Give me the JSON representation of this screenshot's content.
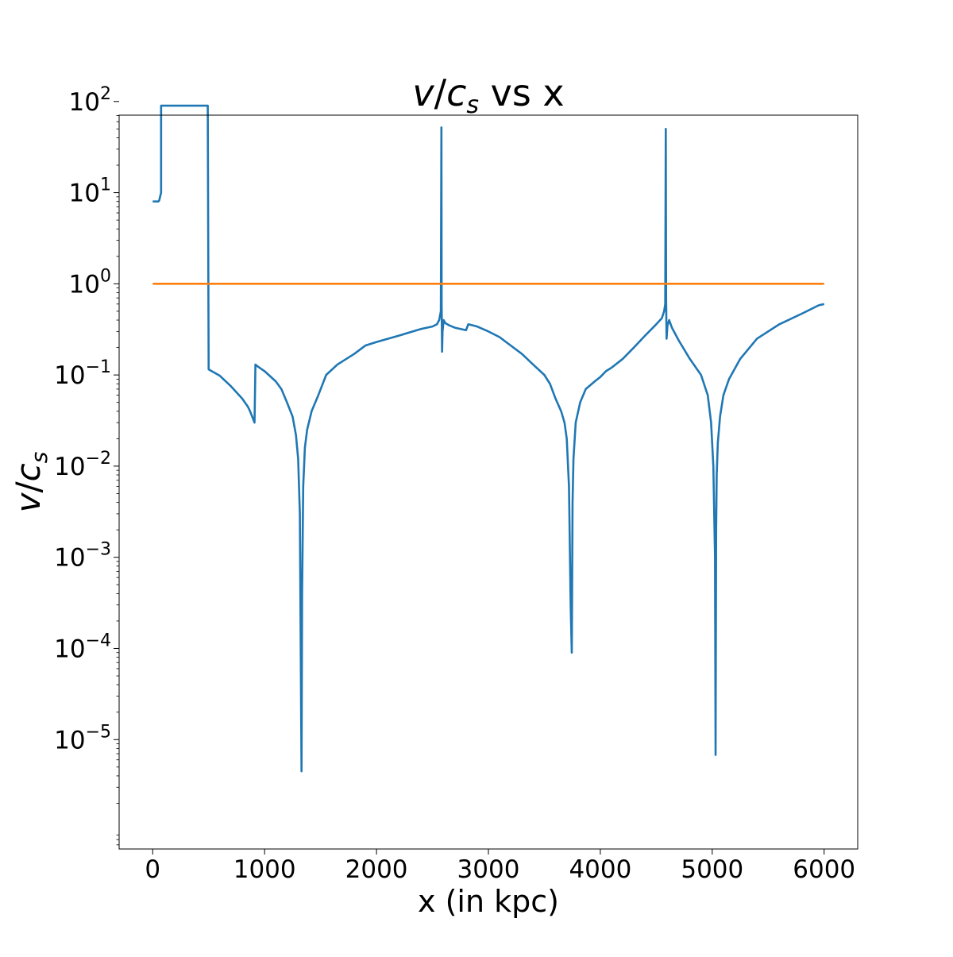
{
  "chart_data": {
    "type": "line",
    "title_parts": {
      "var_v": "v",
      "slash": "/",
      "var_c": "c",
      "sub_s": "s",
      "rest": " vs x"
    },
    "xlabel": "x (in kpc)",
    "ylabel_parts": {
      "var_v": "v",
      "slash": "/",
      "var_c": "c",
      "sub_s": "s"
    },
    "xlim": [
      -300,
      6300
    ],
    "ylim_log10": [
      -6.2,
      1.85
    ],
    "y_scale": "log",
    "grid": false,
    "x_ticks": [
      {
        "value": 0,
        "label": "0"
      },
      {
        "value": 1000,
        "label": "1000"
      },
      {
        "value": 2000,
        "label": "2000"
      },
      {
        "value": 3000,
        "label": "3000"
      },
      {
        "value": 4000,
        "label": "4000"
      },
      {
        "value": 5000,
        "label": "5000"
      },
      {
        "value": 6000,
        "label": "6000"
      }
    ],
    "y_ticks": [
      {
        "exp": 2,
        "base": "10",
        "power": "2"
      },
      {
        "exp": 1,
        "base": "10",
        "power": "1"
      },
      {
        "exp": 0,
        "base": "10",
        "power": "0"
      },
      {
        "exp": -1,
        "base": "10",
        "power": "−1"
      },
      {
        "exp": -2,
        "base": "10",
        "power": "−2"
      },
      {
        "exp": -3,
        "base": "10",
        "power": "−3"
      },
      {
        "exp": -4,
        "base": "10",
        "power": "−4"
      },
      {
        "exp": -5,
        "base": "10",
        "power": "−5"
      }
    ],
    "series": [
      {
        "color": "#1f77b4",
        "x": [
          0,
          50,
          58,
          75,
          75,
          490,
          492,
          500,
          600,
          700,
          800,
          850,
          870,
          910,
          918,
          935,
          1000,
          1100,
          1150,
          1200,
          1250,
          1280,
          1300,
          1315,
          1330,
          1335,
          1345,
          1360,
          1380,
          1420,
          1480,
          1550,
          1650,
          1800,
          1900,
          2000,
          2200,
          2400,
          2500,
          2540,
          2560,
          2575,
          2580,
          2582,
          2586,
          2590,
          2600,
          2615,
          2650,
          2700,
          2800,
          2820,
          2900,
          3000,
          3100,
          3200,
          3300,
          3400,
          3500,
          3550,
          3600,
          3650,
          3680,
          3700,
          3720,
          3735,
          3745,
          3752,
          3760,
          3780,
          3820,
          3870,
          3950,
          4000,
          4050,
          4100,
          4200,
          4300,
          4400,
          4500,
          4550,
          4570,
          4580,
          4585,
          4588,
          4592,
          4600,
          4615,
          4640,
          4700,
          4800,
          4900,
          4960,
          4990,
          5010,
          5025,
          5030,
          5035,
          5040,
          5050,
          5070,
          5100,
          5150,
          5250,
          5400,
          5600,
          5800,
          5950,
          6000
        ],
        "y": [
          8,
          8,
          8.2,
          10,
          90,
          90,
          90,
          0.115,
          0.098,
          0.075,
          0.055,
          0.045,
          0.04,
          0.03,
          0.13,
          0.125,
          0.11,
          0.085,
          0.07,
          0.05,
          0.035,
          0.022,
          0.012,
          0.003,
          4.5e-06,
          0.0004,
          0.006,
          0.016,
          0.025,
          0.04,
          0.06,
          0.1,
          0.13,
          0.17,
          0.21,
          0.23,
          0.27,
          0.32,
          0.34,
          0.36,
          0.4,
          0.5,
          52,
          0.6,
          0.18,
          0.3,
          0.4,
          0.37,
          0.35,
          0.33,
          0.31,
          0.36,
          0.34,
          0.3,
          0.26,
          0.21,
          0.17,
          0.13,
          0.1,
          0.08,
          0.055,
          0.04,
          0.03,
          0.02,
          0.006,
          0.0003,
          9e-05,
          0.004,
          0.012,
          0.03,
          0.05,
          0.07,
          0.085,
          0.095,
          0.11,
          0.12,
          0.15,
          0.2,
          0.27,
          0.36,
          0.42,
          0.5,
          0.6,
          50,
          0.7,
          0.25,
          0.35,
          0.4,
          0.33,
          0.24,
          0.15,
          0.1,
          0.06,
          0.03,
          0.01,
          0.001,
          6.8e-06,
          0.002,
          0.008,
          0.018,
          0.035,
          0.06,
          0.09,
          0.15,
          0.25,
          0.36,
          0.47,
          0.58,
          0.6
        ]
      },
      {
        "color": "#ff7f0e",
        "x": [
          0,
          6000
        ],
        "y": [
          1,
          1
        ]
      }
    ]
  }
}
